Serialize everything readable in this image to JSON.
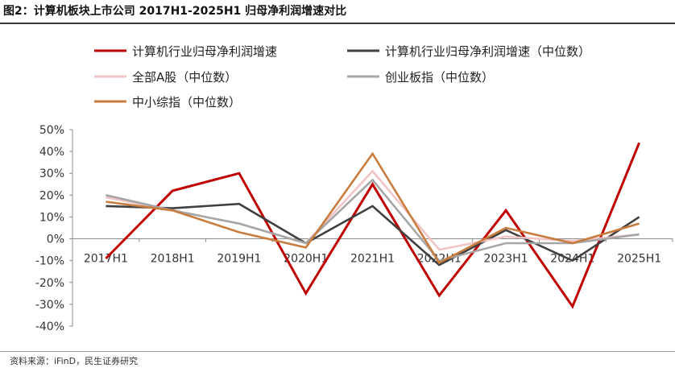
{
  "title": "图2：计算机板块上市公司 2017H1-2025H1 归母净利润增速对比",
  "source": "资料来源：iFinD，民生证券研究",
  "chart_data": {
    "type": "line",
    "categories": [
      "2017H1",
      "2018H1",
      "2019H1",
      "2020H1",
      "2021H1",
      "2022H1",
      "2023H1",
      "2024H1",
      "2025H1"
    ],
    "ylim": [
      -40,
      50
    ],
    "yticks": [
      -40,
      -30,
      -20,
      -10,
      0,
      10,
      20,
      30,
      40,
      50
    ],
    "ytick_labels": [
      "-40%",
      "-30%",
      "-20%",
      "-10%",
      "0%",
      "10%",
      "20%",
      "30%",
      "40%",
      "50%"
    ],
    "grid": false,
    "legend_position": "top",
    "series": [
      {
        "name": "计算机行业归母净利润增速",
        "color": "#c00000",
        "values": [
          -9,
          22,
          30,
          -25,
          25,
          -26,
          13,
          -31,
          44
        ]
      },
      {
        "name": "计算机行业归母净利润增速（中位数）",
        "color": "#404040",
        "values": [
          15,
          14,
          16,
          -2,
          15,
          -12,
          4,
          -10,
          10
        ]
      },
      {
        "name": "全部A股（中位数）",
        "color": "#f2c4c6",
        "values": [
          19,
          13,
          7,
          -2,
          31,
          -5,
          1,
          -1,
          2
        ]
      },
      {
        "name": "创业板指（中位数）",
        "color": "#a6a6a6",
        "values": [
          20,
          13,
          7,
          -2,
          27,
          -10,
          -2,
          -2,
          2
        ]
      },
      {
        "name": "中小综指（中位数）",
        "color": "#c87c3e",
        "values": [
          17,
          13,
          3,
          -4,
          39,
          -11,
          5,
          -2,
          7
        ]
      }
    ]
  }
}
